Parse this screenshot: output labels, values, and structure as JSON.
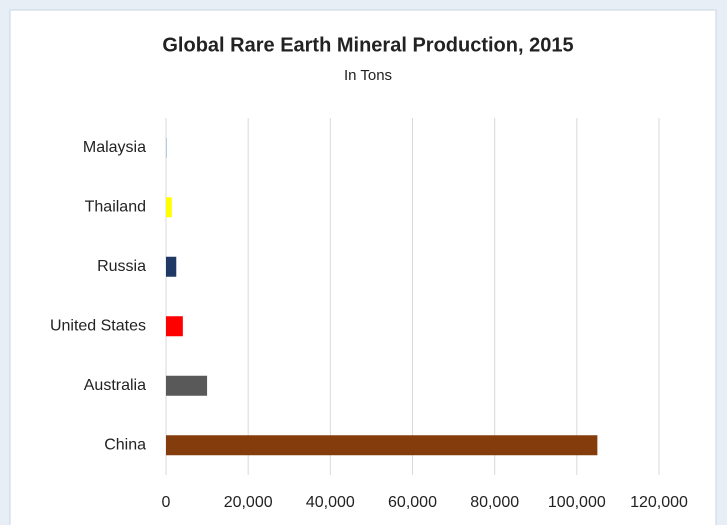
{
  "chart_data": {
    "type": "barh",
    "title": "Global Rare Earth Mineral Production, 2015",
    "subtitle": "In Tons",
    "categories": [
      "Malaysia",
      "Thailand",
      "Russia",
      "United States",
      "Australia",
      "China"
    ],
    "values": [
      200,
      1400,
      2500,
      4100,
      10000,
      105000
    ],
    "colors": [
      "#9dc3e6",
      "#ffff00",
      "#203864",
      "#ff0000",
      "#595959",
      "#843c0c"
    ],
    "xlim": [
      0,
      120000
    ],
    "xticks": [
      0,
      {
        "value": 20000,
        "label": "20,000"
      },
      {
        "value": 40000,
        "label": "40,000"
      },
      {
        "value": 60000,
        "label": "60,000"
      },
      {
        "value": 80000,
        "label": "80,000"
      },
      {
        "value": 100000,
        "label": "100,000"
      },
      {
        "value": 120000,
        "label": "120,000"
      }
    ],
    "grid": true
  }
}
